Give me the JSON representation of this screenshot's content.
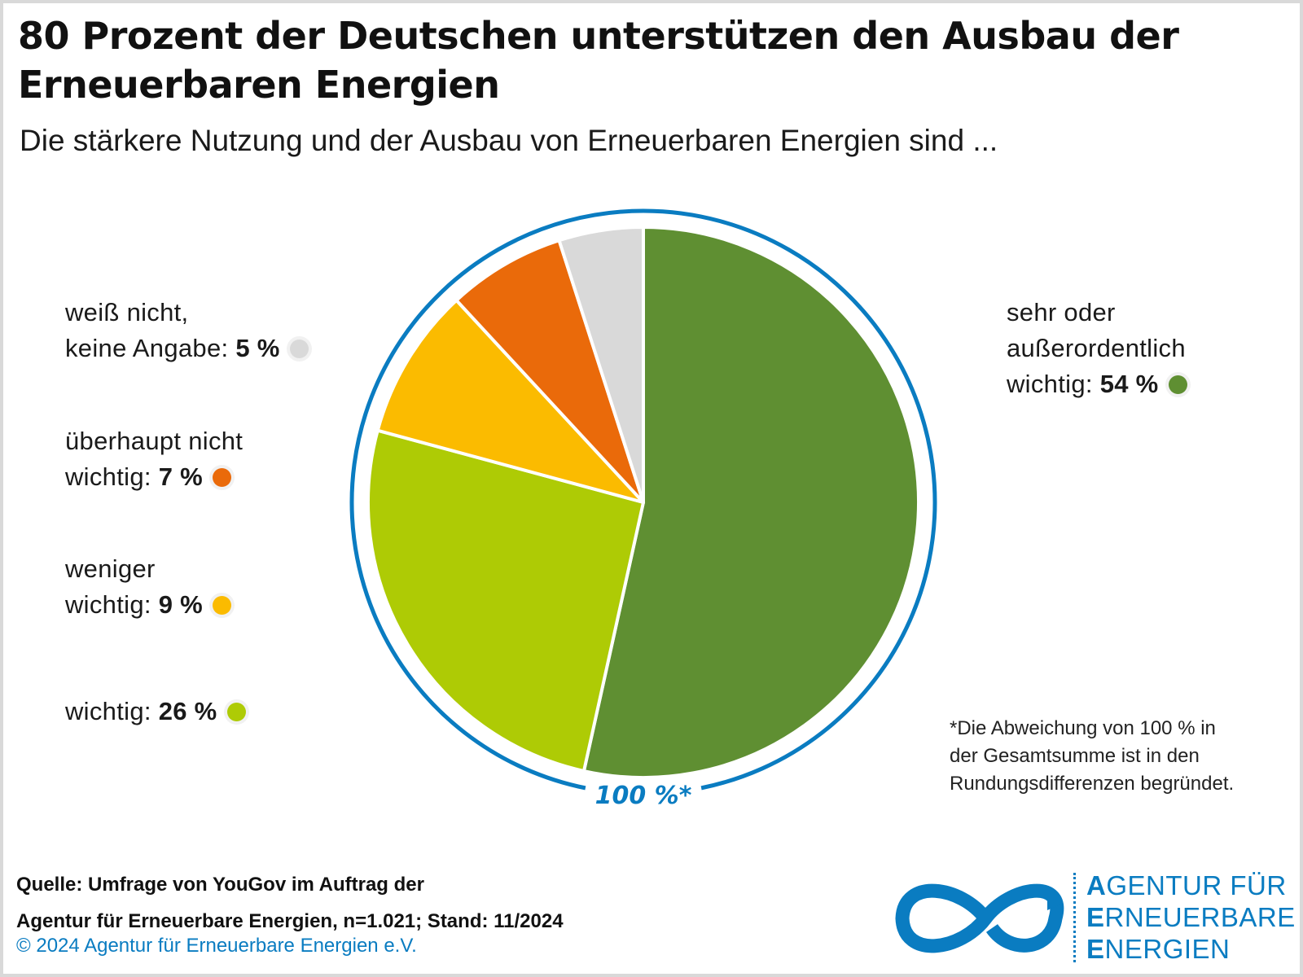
{
  "header": {
    "title": "80 Prozent der Deutschen unterstützen den Ausbau der Erneuerbaren Energien",
    "subtitle": "Die stärkere Nutzung und der Ausbau von Erneuerbaren Energien sind ..."
  },
  "chart_data": {
    "type": "pie",
    "total_label": "100 %*",
    "slices": [
      {
        "label": "sehr oder\naußerordentlich\nwichtig: ",
        "value": 54,
        "value_label": "54 %",
        "color": "#5f8f32"
      },
      {
        "label": "wichtig: ",
        "value": 26,
        "value_label": "26 %",
        "color": "#aecb05"
      },
      {
        "label": "weniger\nwichtig: ",
        "value": 9,
        "value_label": "9 %",
        "color": "#fbbb00"
      },
      {
        "label": "überhaupt nicht\nwichtig: ",
        "value": 7,
        "value_label": "7 %",
        "color": "#ea6a0a"
      },
      {
        "label": "weiß nicht,\nkeine Angabe: ",
        "value": 5,
        "value_label": "5 %",
        "color": "#d9d9d9"
      }
    ],
    "ring_color": "#0a7cc1",
    "footnote": "*Die Abweichung von 100 % in\n der Gesamtsumme ist in den\n Rundungsdifferenzen begründet."
  },
  "footer": {
    "source": "Quelle: Umfrage von YouGov im Auftrag der\nAgentur für Erneuerbare Energien, n=1.021; Stand: 11/2024",
    "copyright": "© 2024 Agentur für Erneuerbare Energien e.V.",
    "logo": {
      "line1_initial": "A",
      "line1_rest": "GENTUR FÜR",
      "line2_initial": "E",
      "line2_rest": "RNEUERBARE",
      "line3_initial": "E",
      "line3_rest": "NERGIEN",
      "color": "#0a7cc1"
    }
  }
}
